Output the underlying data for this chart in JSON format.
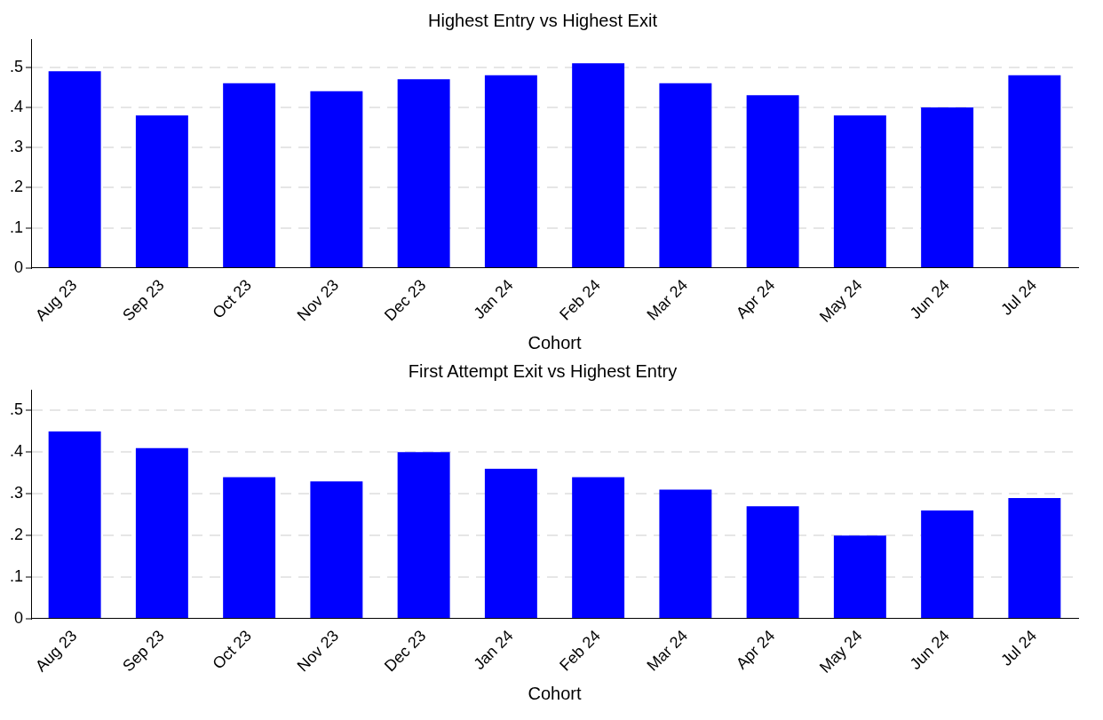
{
  "chart_data": [
    {
      "type": "bar",
      "title": "Highest Entry vs Highest Exit",
      "xlabel": "Cohort",
      "categories": [
        "Aug 23",
        "Sep 23",
        "Oct 23",
        "Nov 23",
        "Dec 23",
        "Jan 24",
        "Feb 24",
        "Mar 24",
        "Apr 24",
        "May 24",
        "Jun 24",
        "Jul 24"
      ],
      "values": [
        0.49,
        0.38,
        0.46,
        0.44,
        0.47,
        0.48,
        0.51,
        0.46,
        0.43,
        0.38,
        0.4,
        0.48
      ],
      "color": "#0000ff",
      "ylim": [
        0,
        0.57
      ],
      "yticks": [
        0,
        {
          "value": 0.1,
          "label": ".1"
        },
        {
          "value": 0.2,
          "label": ".2"
        },
        {
          "value": 0.3,
          "label": ".3"
        },
        {
          "value": 0.4,
          "label": ".4"
        },
        {
          "value": 0.5,
          "label": ".5"
        }
      ],
      "grid": "y",
      "legend": false
    },
    {
      "type": "bar",
      "title": "First Attempt Exit vs Highest Entry",
      "xlabel": "Cohort",
      "categories": [
        "Aug 23",
        "Sep 23",
        "Oct 23",
        "Nov 23",
        "Dec 23",
        "Jan 24",
        "Feb 24",
        "Mar 24",
        "Apr 24",
        "May 24",
        "Jun 24",
        "Jul 24"
      ],
      "values": [
        0.45,
        0.41,
        0.34,
        0.33,
        0.4,
        0.36,
        0.34,
        0.31,
        0.27,
        0.2,
        0.26,
        0.29
      ],
      "color": "#0000ff",
      "ylim": [
        0,
        0.55
      ],
      "yticks": [
        0,
        {
          "value": 0.1,
          "label": ".1"
        },
        {
          "value": 0.2,
          "label": ".2"
        },
        {
          "value": 0.3,
          "label": ".3"
        },
        {
          "value": 0.4,
          "label": ".4"
        },
        {
          "value": 0.5,
          "label": ".5"
        }
      ],
      "grid": "y",
      "legend": false
    }
  ]
}
